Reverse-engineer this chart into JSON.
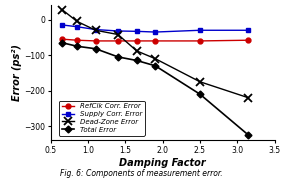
{
  "x": [
    0.65,
    0.85,
    1.1,
    1.4,
    1.65,
    1.9,
    2.5,
    3.15
  ],
  "refclk": [
    -55,
    -58,
    -60,
    -60,
    -60,
    -60,
    -60,
    -58
  ],
  "supply": [
    -15,
    -20,
    -28,
    -32,
    -33,
    -35,
    -30,
    -30
  ],
  "deadzone": [
    28,
    -5,
    -30,
    -42,
    -88,
    -110,
    -175,
    -220
  ],
  "total": [
    -65,
    -75,
    -82,
    -105,
    -115,
    -130,
    -210,
    -325
  ],
  "xlabel": "Damping Factor",
  "ylabel": "Error (ps²)",
  "xlim": [
    0.5,
    3.5
  ],
  "ylim": [
    -340,
    40
  ],
  "xticks": [
    0.5,
    1.0,
    1.5,
    2.0,
    2.5,
    3.0,
    3.5
  ],
  "yticks": [
    0,
    -100,
    -200,
    -300
  ],
  "legend_labels": [
    "RefClk Corr. Error",
    "Supply Corr. Error",
    "Dead-Zone Error",
    "Total Error"
  ],
  "line_colors": [
    "#cc0000",
    "#0000cc",
    "#000000",
    "#000000"
  ],
  "markers": [
    "o",
    "s",
    "x",
    "D"
  ],
  "lws": [
    1.0,
    1.0,
    1.0,
    1.2
  ],
  "markersizes": [
    3.5,
    3.5,
    5.5,
    3.5
  ],
  "caption": "Fig. 6: Components of measurement error.",
  "bg_color": "#ffffff"
}
